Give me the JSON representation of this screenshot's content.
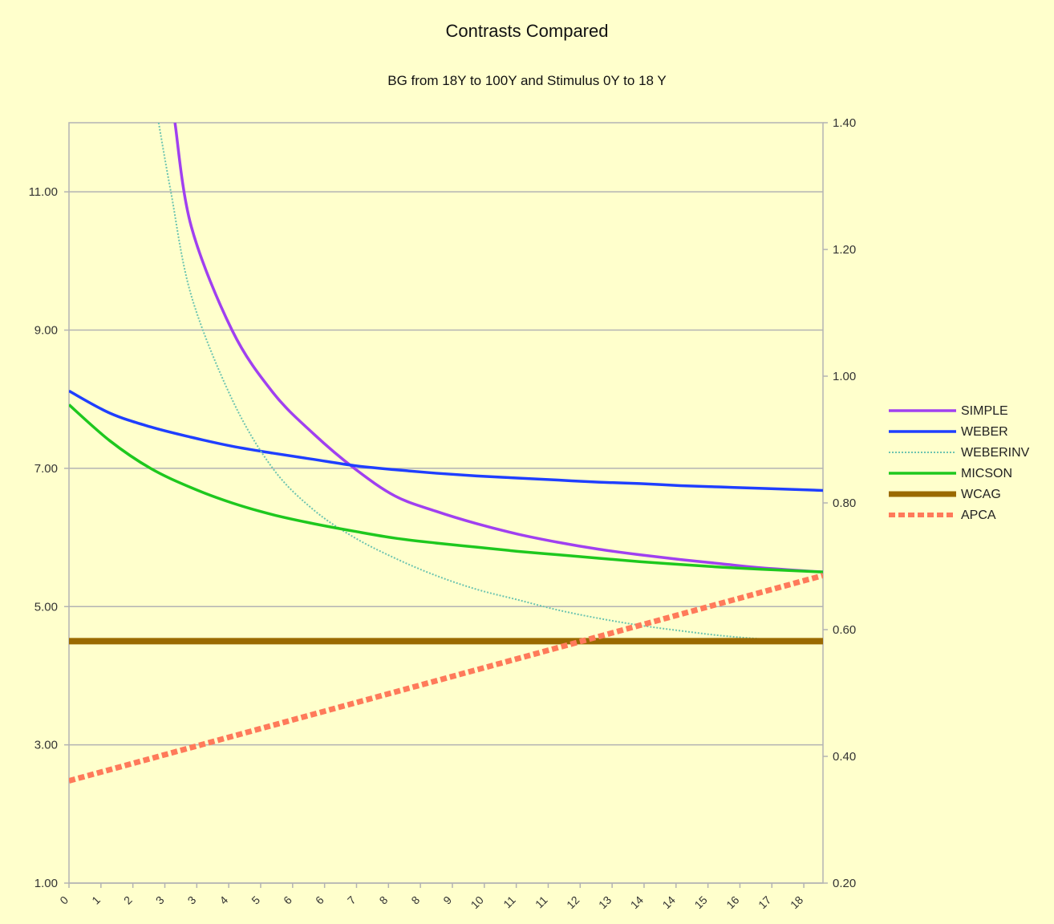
{
  "chart_data": {
    "type": "line",
    "title": "Contrasts Compared",
    "subtitle": "BG  from 18Y to 100Y and  Stimulus 0Y to 18 Y",
    "x": [
      0,
      1,
      2,
      3,
      4,
      5,
      6,
      7,
      8,
      9,
      10,
      11,
      12,
      13,
      14,
      15,
      16,
      17,
      18
    ],
    "x_tick_labels": [
      "0",
      "1",
      "2",
      "3",
      "3",
      "4",
      "5",
      "6",
      "6",
      "7",
      "8",
      "8",
      "9",
      "10",
      "11",
      "11",
      "12",
      "13",
      "14",
      "14",
      "15",
      "16",
      "17",
      "18"
    ],
    "xlim": [
      0,
      18.5
    ],
    "y_left": {
      "ylim": [
        1.0,
        12.0
      ],
      "ticks": [
        "1.00",
        "3.00",
        "5.00",
        "7.00",
        "9.00",
        "11.00"
      ]
    },
    "y_right": {
      "ylim": [
        0.2,
        1.4
      ],
      "ticks": [
        "0.20",
        "0.40",
        "0.60",
        "0.80",
        "1.00",
        "1.20",
        "1.40"
      ]
    },
    "grid": true,
    "legend_position": "right",
    "series": [
      {
        "name": "SIMPLE",
        "color": "#a040f0",
        "style": "solid",
        "axis": "left",
        "x": [
          2.6,
          3,
          4,
          5,
          6,
          7,
          8,
          9,
          10,
          11,
          12,
          13,
          14,
          15,
          16,
          17,
          18.5
        ],
        "values": [
          12.0,
          10.5,
          9.0,
          8.1,
          7.5,
          7.0,
          6.6,
          6.38,
          6.2,
          6.05,
          5.93,
          5.83,
          5.75,
          5.68,
          5.62,
          5.56,
          5.5
        ]
      },
      {
        "name": "WEBER",
        "color": "#1f3fff",
        "style": "solid",
        "axis": "left",
        "x": [
          0,
          1,
          2,
          3,
          4,
          5,
          6,
          7,
          8,
          9,
          10,
          11,
          12,
          13,
          14,
          15,
          16,
          17,
          18.5
        ],
        "values": [
          8.12,
          7.8,
          7.6,
          7.45,
          7.32,
          7.22,
          7.13,
          7.04,
          6.98,
          6.93,
          6.89,
          6.86,
          6.83,
          6.8,
          6.78,
          6.75,
          6.73,
          6.71,
          6.68
        ]
      },
      {
        "name": "WEBERINV",
        "color": "#6cc4b0",
        "style": "dotted",
        "axis": "left",
        "x": [
          2.2,
          2.5,
          3,
          4,
          5,
          6,
          7,
          8,
          9,
          10,
          11,
          12,
          13,
          14,
          15,
          16,
          17
        ],
        "values": [
          12.0,
          11.0,
          9.5,
          8.0,
          7.0,
          6.4,
          6.0,
          5.7,
          5.45,
          5.25,
          5.1,
          4.95,
          4.83,
          4.73,
          4.65,
          4.58,
          4.53
        ]
      },
      {
        "name": "MICSON",
        "color": "#1ec81e",
        "style": "solid",
        "axis": "left",
        "x": [
          0,
          1,
          2,
          3,
          4,
          5,
          6,
          7,
          8,
          9,
          10,
          11,
          12,
          13,
          14,
          15,
          16,
          17,
          18.5
        ],
        "values": [
          7.92,
          7.4,
          7.0,
          6.72,
          6.5,
          6.33,
          6.2,
          6.09,
          5.99,
          5.92,
          5.86,
          5.8,
          5.75,
          5.7,
          5.65,
          5.61,
          5.57,
          5.54,
          5.5
        ]
      },
      {
        "name": "WCAG",
        "color": "#9a6a00",
        "style": "solid",
        "axis": "left",
        "x": [
          0,
          18.5
        ],
        "values": [
          4.5,
          4.5
        ]
      },
      {
        "name": "APCA",
        "color": "#ff7a5a",
        "style": "dashed",
        "axis": "left",
        "x": [
          0,
          18.5
        ],
        "values": [
          2.48,
          5.45
        ]
      }
    ]
  }
}
